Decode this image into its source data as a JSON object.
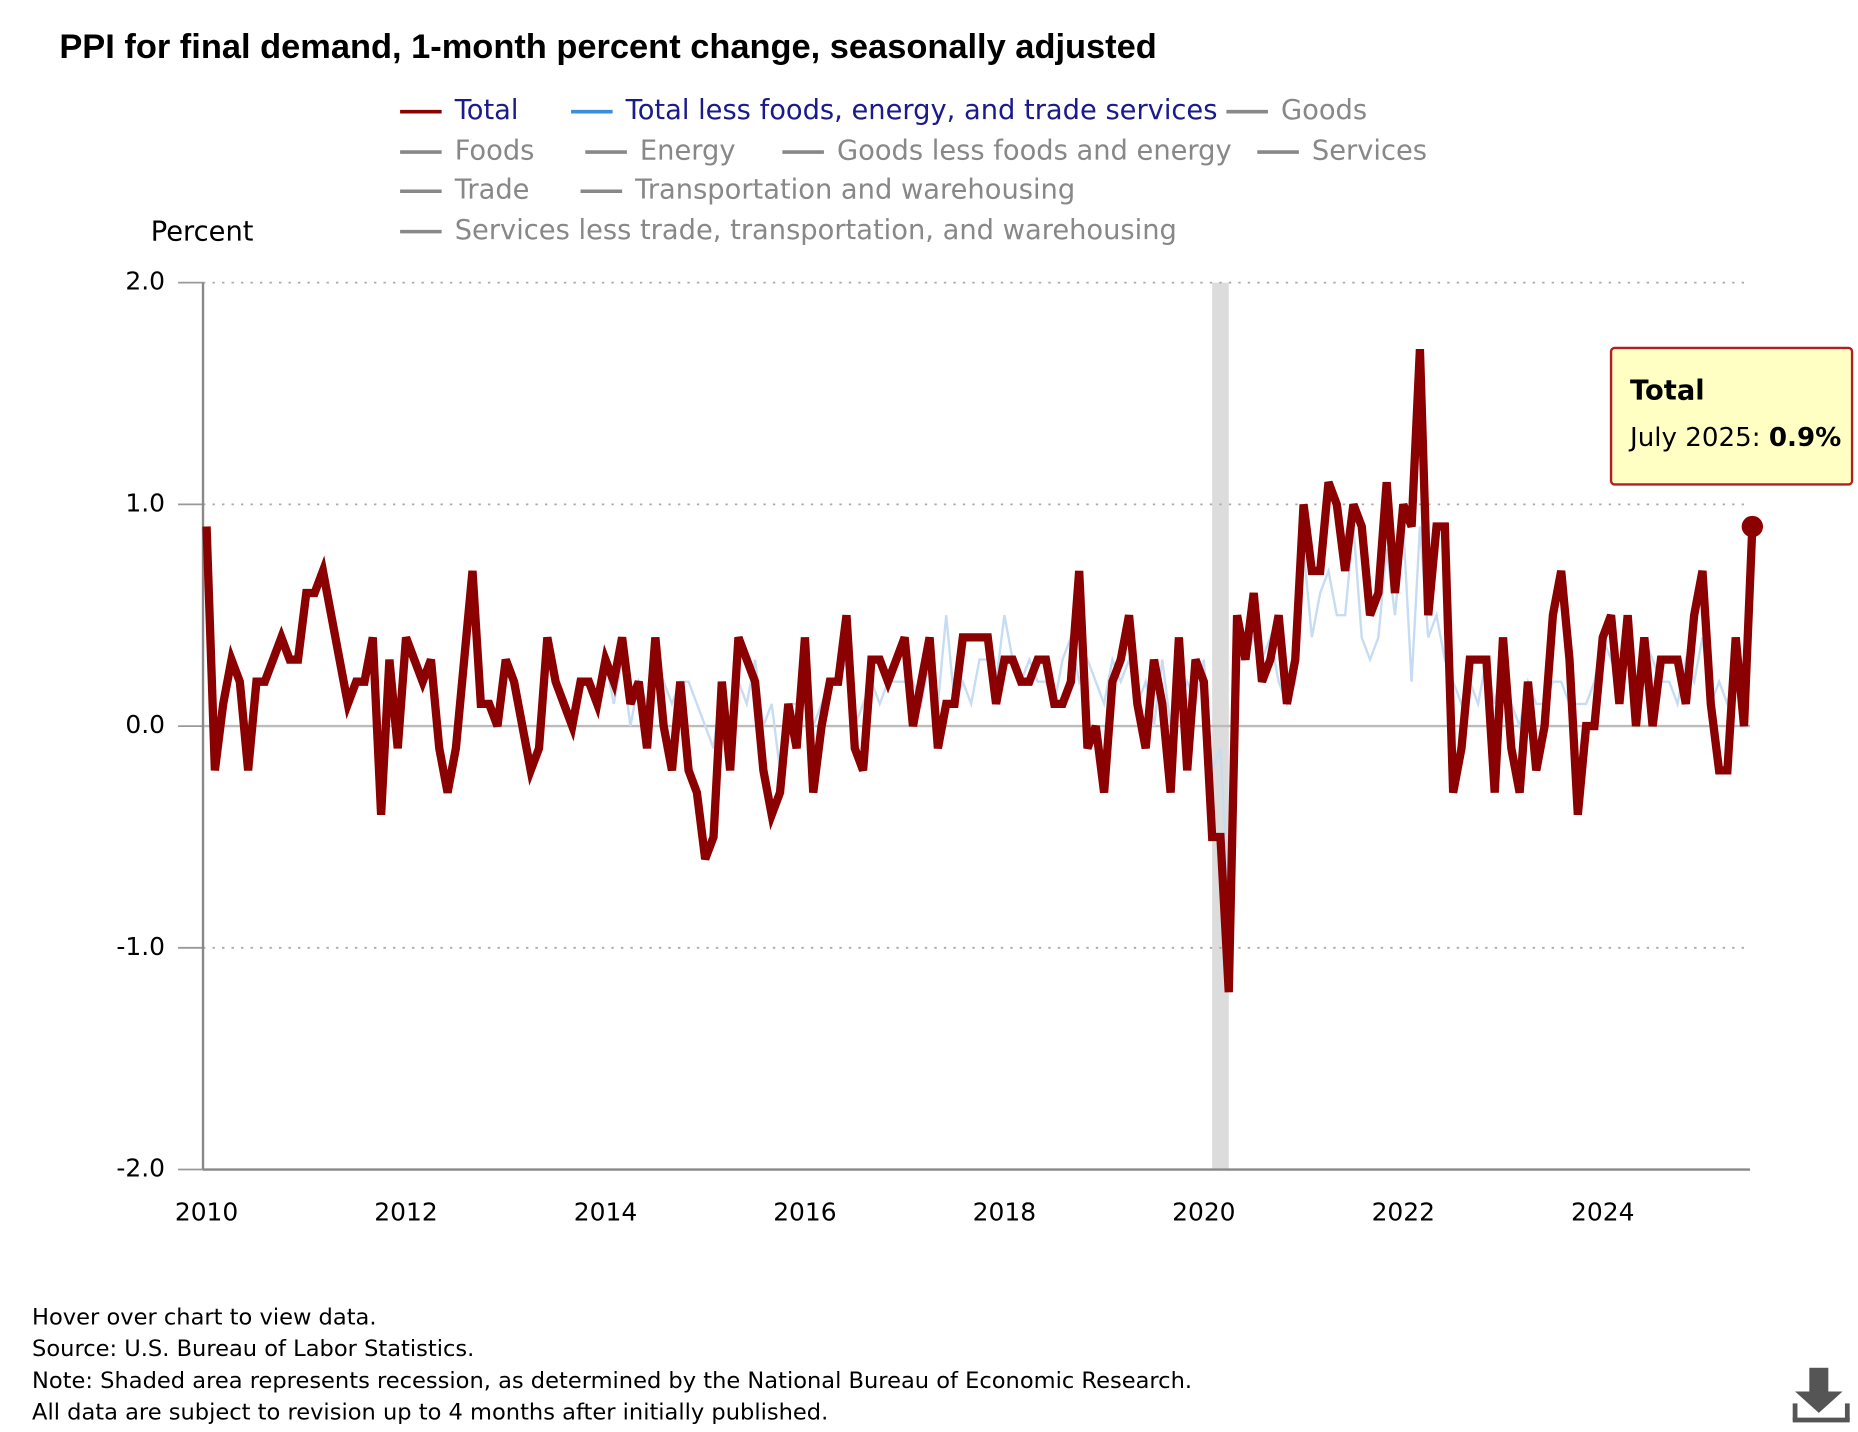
{
  "chart_data": {
    "type": "line",
    "title": "PPI for final demand, 1-month percent change, seasonally adjusted",
    "y_label": "Percent",
    "x": [
      "2010-01",
      "2010-02",
      "2010-03",
      "2010-04",
      "2010-05",
      "2010-06",
      "2010-07",
      "2010-08",
      "2010-09",
      "2010-10",
      "2010-11",
      "2010-12",
      "2011-01",
      "2011-02",
      "2011-03",
      "2011-04",
      "2011-05",
      "2011-06",
      "2011-07",
      "2011-08",
      "2011-09",
      "2011-10",
      "2011-11",
      "2011-12",
      "2012-01",
      "2012-02",
      "2012-03",
      "2012-04",
      "2012-05",
      "2012-06",
      "2012-07",
      "2012-08",
      "2012-09",
      "2012-10",
      "2012-11",
      "2012-12",
      "2013-01",
      "2013-02",
      "2013-03",
      "2013-04",
      "2013-05",
      "2013-06",
      "2013-07",
      "2013-08",
      "2013-09",
      "2013-10",
      "2013-11",
      "2013-12",
      "2014-01",
      "2014-02",
      "2014-03",
      "2014-04",
      "2014-05",
      "2014-06",
      "2014-07",
      "2014-08",
      "2014-09",
      "2014-10",
      "2014-11",
      "2014-12",
      "2015-01",
      "2015-02",
      "2015-03",
      "2015-04",
      "2015-05",
      "2015-06",
      "2015-07",
      "2015-08",
      "2015-09",
      "2015-10",
      "2015-11",
      "2015-12",
      "2016-01",
      "2016-02",
      "2016-03",
      "2016-04",
      "2016-05",
      "2016-06",
      "2016-07",
      "2016-08",
      "2016-09",
      "2016-10",
      "2016-11",
      "2016-12",
      "2017-01",
      "2017-02",
      "2017-03",
      "2017-04",
      "2017-05",
      "2017-06",
      "2017-07",
      "2017-08",
      "2017-09",
      "2017-10",
      "2017-11",
      "2017-12",
      "2018-01",
      "2018-02",
      "2018-03",
      "2018-04",
      "2018-05",
      "2018-06",
      "2018-07",
      "2018-08",
      "2018-09",
      "2018-10",
      "2018-11",
      "2018-12",
      "2019-01",
      "2019-02",
      "2019-03",
      "2019-04",
      "2019-05",
      "2019-06",
      "2019-07",
      "2019-08",
      "2019-09",
      "2019-10",
      "2019-11",
      "2019-12",
      "2020-01",
      "2020-02",
      "2020-03",
      "2020-04",
      "2020-05",
      "2020-06",
      "2020-07",
      "2020-08",
      "2020-09",
      "2020-10",
      "2020-11",
      "2020-12",
      "2021-01",
      "2021-02",
      "2021-03",
      "2021-04",
      "2021-05",
      "2021-06",
      "2021-07",
      "2021-08",
      "2021-09",
      "2021-10",
      "2021-11",
      "2021-12",
      "2022-01",
      "2022-02",
      "2022-03",
      "2022-04",
      "2022-05",
      "2022-06",
      "2022-07",
      "2022-08",
      "2022-09",
      "2022-10",
      "2022-11",
      "2022-12",
      "2023-01",
      "2023-02",
      "2023-03",
      "2023-04",
      "2023-05",
      "2023-06",
      "2023-07",
      "2023-08",
      "2023-09",
      "2023-10",
      "2023-11",
      "2023-12",
      "2024-01",
      "2024-02",
      "2024-03",
      "2024-04",
      "2024-05",
      "2024-06",
      "2024-07",
      "2024-08",
      "2024-09",
      "2024-10",
      "2024-11",
      "2024-12",
      "2025-01",
      "2025-02",
      "2025-03",
      "2025-04",
      "2025-05",
      "2025-06",
      "2025-07"
    ],
    "series": [
      {
        "name": "Total",
        "color": "#8b0000",
        "values": [
          0.9,
          -0.2,
          0.1,
          0.3,
          0.2,
          -0.2,
          0.2,
          0.2,
          0.3,
          0.4,
          0.3,
          0.3,
          0.6,
          0.6,
          0.7,
          0.5,
          0.3,
          0.1,
          0.2,
          0.2,
          0.4,
          -0.4,
          0.3,
          -0.1,
          0.4,
          0.3,
          0.2,
          0.3,
          -0.1,
          -0.3,
          -0.1,
          0.3,
          0.7,
          0.1,
          0.1,
          0.0,
          0.3,
          0.2,
          0.0,
          -0.2,
          -0.1,
          0.4,
          0.2,
          0.1,
          0.0,
          0.2,
          0.2,
          0.1,
          0.3,
          0.2,
          0.4,
          0.1,
          0.2,
          -0.1,
          0.4,
          0.0,
          -0.2,
          0.2,
          -0.2,
          -0.3,
          -0.6,
          -0.5,
          0.2,
          -0.2,
          0.4,
          0.3,
          0.2,
          -0.2,
          -0.4,
          -0.3,
          0.1,
          -0.1,
          0.4,
          -0.3,
          0.0,
          0.2,
          0.2,
          0.5,
          -0.1,
          -0.2,
          0.3,
          0.3,
          0.2,
          0.3,
          0.4,
          0.0,
          0.2,
          0.4,
          -0.1,
          0.1,
          0.1,
          0.4,
          0.4,
          0.4,
          0.4,
          0.1,
          0.3,
          0.3,
          0.2,
          0.2,
          0.3,
          0.3,
          0.1,
          0.1,
          0.2,
          0.7,
          -0.1,
          0.0,
          -0.3,
          0.2,
          0.3,
          0.5,
          0.1,
          -0.1,
          0.3,
          0.1,
          -0.3,
          0.4,
          -0.2,
          0.3,
          0.2,
          -0.5,
          -0.5,
          -1.2,
          0.5,
          0.3,
          0.6,
          0.2,
          0.3,
          0.5,
          0.1,
          0.3,
          1.0,
          0.7,
          0.7,
          1.1,
          1.0,
          0.7,
          1.0,
          0.9,
          0.5,
          0.6,
          1.1,
          0.6,
          1.0,
          0.9,
          1.7,
          0.5,
          0.9,
          0.9,
          -0.3,
          -0.1,
          0.3,
          0.3,
          0.3,
          -0.3,
          0.4,
          -0.1,
          -0.3,
          0.2,
          -0.2,
          0.0,
          0.5,
          0.7,
          0.3,
          -0.4,
          0.0,
          0.0,
          0.4,
          0.5,
          0.1,
          0.5,
          0.0,
          0.4,
          0.0,
          0.3,
          0.3,
          0.3,
          0.1,
          0.5,
          0.7,
          0.1,
          -0.2,
          -0.2,
          0.4,
          0.0,
          0.9
        ]
      },
      {
        "name": "Total less foods, energy, and trade services",
        "color": "#c6dcf2",
        "values": [
          null,
          null,
          null,
          null,
          null,
          null,
          null,
          null,
          null,
          null,
          null,
          null,
          null,
          null,
          null,
          null,
          null,
          null,
          null,
          null,
          null,
          null,
          null,
          null,
          null,
          null,
          null,
          null,
          null,
          null,
          null,
          null,
          null,
          null,
          null,
          null,
          null,
          null,
          null,
          null,
          null,
          null,
          null,
          null,
          null,
          null,
          null,
          null,
          0.3,
          0.1,
          0.3,
          0.0,
          0.2,
          0.1,
          0.3,
          0.2,
          0.1,
          0.2,
          0.2,
          0.1,
          0.0,
          -0.1,
          0.2,
          0.0,
          0.2,
          0.1,
          0.3,
          0.0,
          0.1,
          -0.2,
          0.1,
          0.1,
          0.3,
          0.0,
          0.1,
          0.2,
          0.2,
          0.3,
          0.0,
          0.1,
          0.2,
          0.1,
          0.2,
          0.2,
          0.2,
          0.2,
          0.1,
          0.3,
          0.1,
          0.5,
          0.1,
          0.2,
          0.1,
          0.3,
          0.3,
          0.2,
          0.5,
          0.3,
          0.2,
          0.3,
          0.2,
          0.2,
          0.1,
          0.3,
          0.4,
          0.2,
          0.3,
          0.2,
          0.1,
          0.3,
          0.2,
          0.3,
          0.1,
          0.2,
          0.0,
          0.3,
          0.0,
          0.1,
          0.2,
          0.1,
          0.3,
          -0.2,
          -0.1,
          -0.8,
          0.3,
          0.3,
          0.4,
          0.3,
          0.4,
          0.2,
          0.1,
          0.2,
          0.8,
          0.4,
          0.6,
          0.7,
          0.5,
          0.5,
          0.9,
          0.4,
          0.3,
          0.4,
          0.8,
          0.5,
          0.9,
          0.2,
          0.9,
          0.4,
          0.5,
          0.3,
          0.2,
          0.1,
          0.2,
          0.1,
          0.3,
          0.1,
          0.3,
          0.1,
          0.0,
          0.2,
          0.1,
          0.1,
          0.2,
          0.2,
          0.1,
          0.1,
          0.1,
          0.2,
          0.4,
          0.3,
          0.2,
          0.4,
          0.0,
          0.4,
          0.3,
          0.2,
          0.2,
          0.1,
          0.3,
          0.2,
          0.4,
          0.1,
          0.2,
          0.1,
          0.3,
          0.0,
          0.6
        ]
      }
    ],
    "legend_colors": [
      "#8b0000",
      "#3b8ede"
    ],
    "legend_inactive": [
      {
        "name": "Goods",
        "color": "#888888"
      },
      {
        "name": "Foods",
        "color": "#888888"
      },
      {
        "name": "Energy",
        "color": "#888888"
      },
      {
        "name": "Goods less foods and energy",
        "color": "#888888"
      },
      {
        "name": "Services",
        "color": "#888888"
      },
      {
        "name": "Trade",
        "color": "#888888"
      },
      {
        "name": "Transportation and warehousing",
        "color": "#888888"
      },
      {
        "name": "Services less trade, transportation, and warehousing",
        "color": "#888888"
      }
    ],
    "xlim": [
      "2010-01",
      "2025-07"
    ],
    "xticks": [
      2010,
      2012,
      2014,
      2016,
      2018,
      2020,
      2022,
      2024
    ],
    "ylim": [
      -2,
      2
    ],
    "yticks": [
      {
        "value": 2,
        "label": "2.0"
      },
      {
        "value": 1,
        "label": "1.0"
      },
      {
        "value": 0,
        "label": "0.0"
      },
      {
        "value": -1,
        "label": "-1.0"
      },
      {
        "value": -2,
        "label": "-2.0"
      }
    ],
    "grid": true,
    "recessions": [
      {
        "start": "2020-02",
        "end": "2020-04"
      }
    ],
    "tooltip": {
      "name": "Total",
      "label": "July 2025",
      "value": 0.9,
      "value_label": "0.9%"
    },
    "notes": [
      "Hover over chart to view data.",
      "Source: U.S. Bureau of Labor Statistics.",
      "Note: Shaded area represents recession, as determined by the National Bureau of Economic Research.",
      "All data are subject to revision up to 4 months after initially published."
    ]
  }
}
